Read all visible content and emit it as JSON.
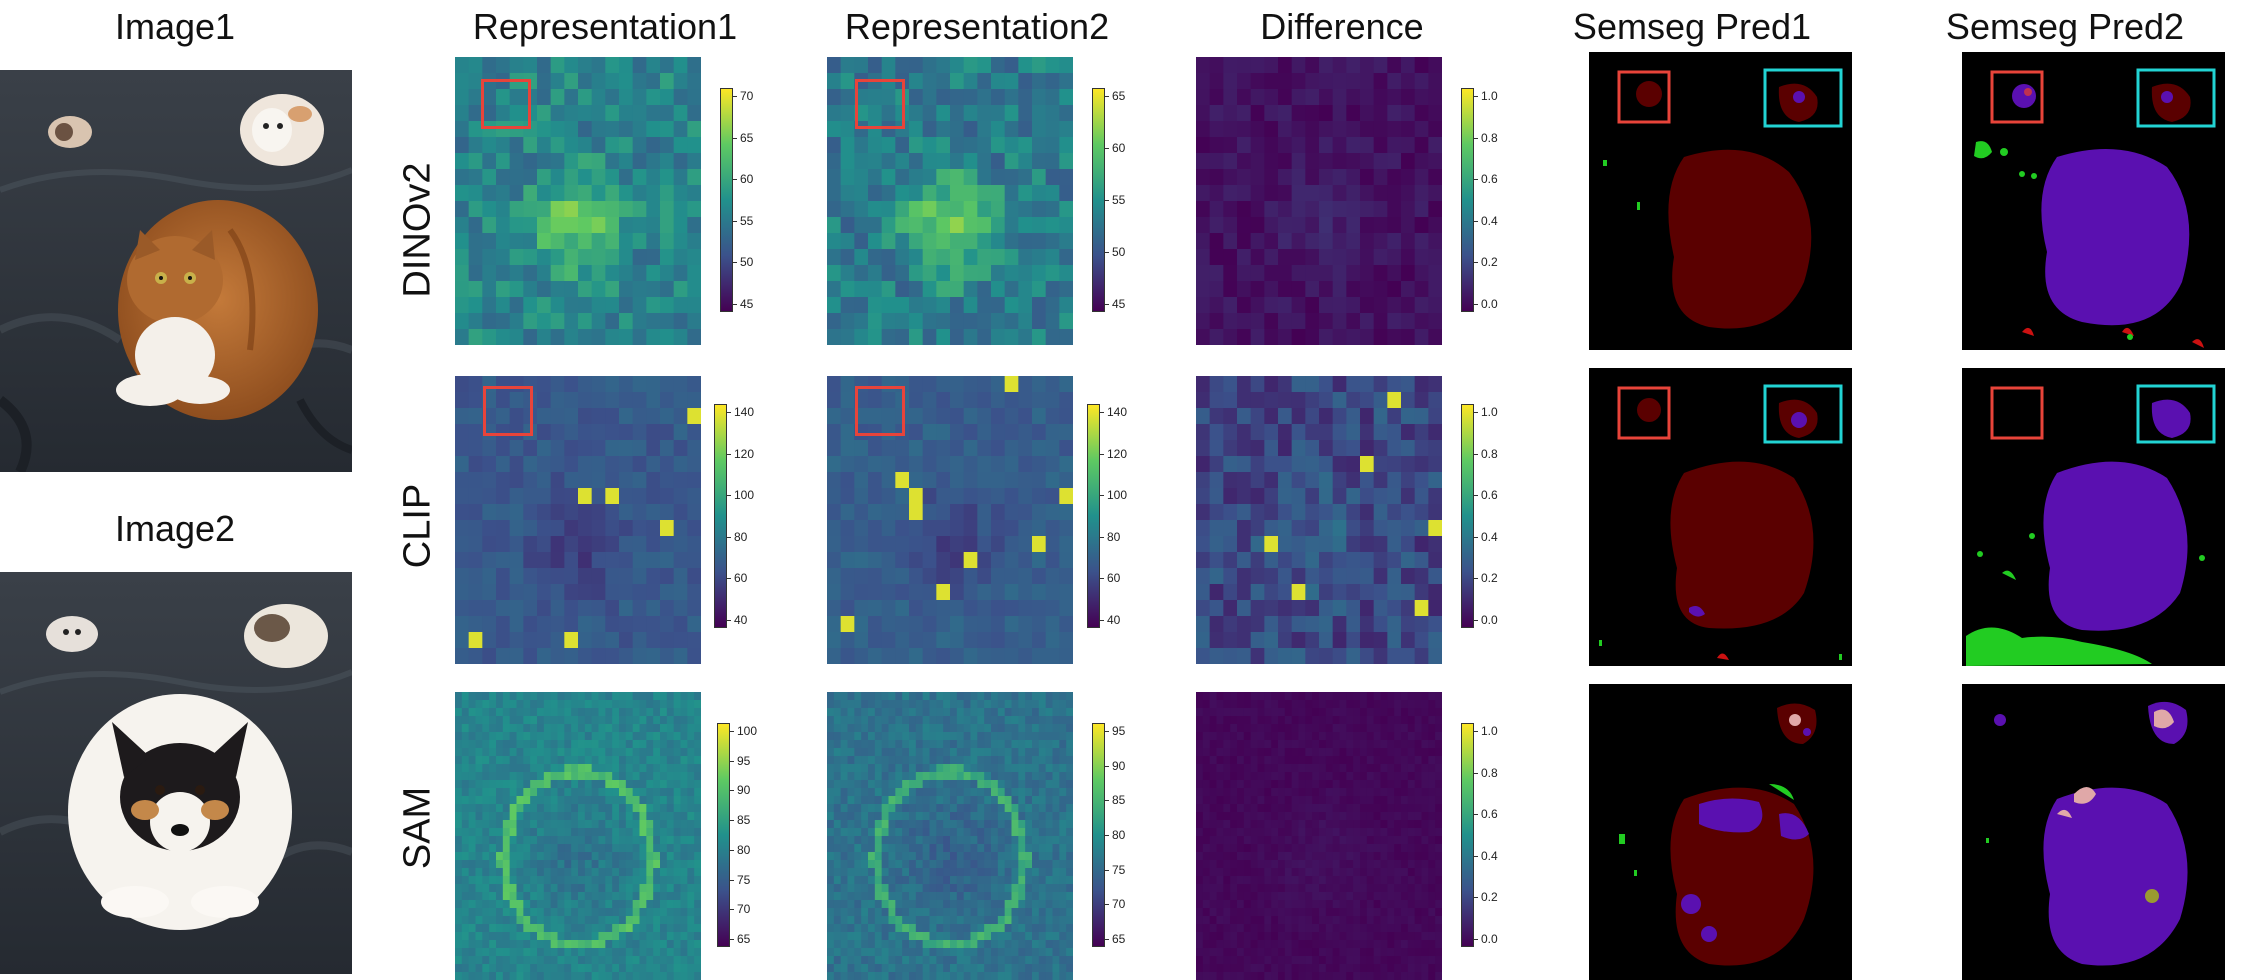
{
  "columns": {
    "image1": "Image1",
    "image2": "Image2",
    "rep1": "Representation1",
    "rep2": "Representation2",
    "diff": "Difference",
    "seg1": "Semseg Pred1",
    "seg2": "Semseg Pred2"
  },
  "rows": [
    "DINOv2",
    "CLIP",
    "SAM"
  ],
  "colorbars": {
    "dinov2_rep1": [
      "70",
      "65",
      "60",
      "55",
      "50",
      "45"
    ],
    "dinov2_rep2": [
      "65",
      "60",
      "55",
      "50",
      "45"
    ],
    "dinov2_diff": [
      "1.0",
      "0.8",
      "0.6",
      "0.4",
      "0.2",
      "0.0"
    ],
    "clip_rep1": [
      "140",
      "120",
      "100",
      "80",
      "60",
      "40"
    ],
    "clip_rep2": [
      "140",
      "120",
      "100",
      "80",
      "60",
      "40"
    ],
    "clip_diff": [
      "1.0",
      "0.8",
      "0.6",
      "0.4",
      "0.2",
      "0.0"
    ],
    "sam_rep1": [
      "100",
      "95",
      "90",
      "85",
      "80",
      "75",
      "70",
      "65"
    ],
    "sam_rep2": [
      "95",
      "90",
      "85",
      "80",
      "75",
      "70",
      "65"
    ],
    "sam_diff": [
      "1.0",
      "0.8",
      "0.6",
      "0.4",
      "0.2",
      "0.0"
    ]
  },
  "colors": {
    "viridis_dark": "#440154",
    "viridis_mid": "#21918c",
    "viridis_light": "#fde725",
    "seg_cat": "#5a0000",
    "seg_dog": "#5a10b0",
    "seg_green": "#22cc22",
    "box_red": "#e8443a",
    "box_cyan": "#22d4d4"
  }
}
